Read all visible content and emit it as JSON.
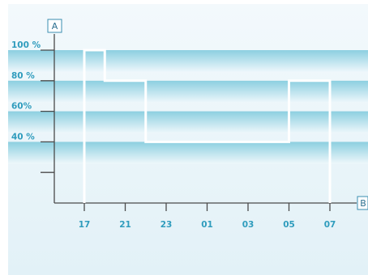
{
  "chart_data": {
    "type": "line",
    "step": true,
    "y_axis_label": "A",
    "x_axis_label": "B",
    "y_ticks": [
      {
        "value": 100,
        "label": "100 %"
      },
      {
        "value": 80,
        "label": "80 %"
      },
      {
        "value": 60,
        "label": "60%"
      },
      {
        "value": 40,
        "label": "40 %"
      },
      {
        "value": 20,
        "label": ""
      }
    ],
    "x_ticks": [
      "17",
      "21",
      "23",
      "01",
      "03",
      "05",
      "07"
    ],
    "ylim": [
      0,
      100
    ],
    "series": [
      {
        "values": [
          {
            "x": 0.0,
            "y": 0
          },
          {
            "x": 0.0,
            "y": 100
          },
          {
            "x": 0.5,
            "y": 100
          },
          {
            "x": 0.5,
            "y": 80
          },
          {
            "x": 1.5,
            "y": 80
          },
          {
            "x": 1.5,
            "y": 40
          },
          {
            "x": 5.0,
            "y": 40
          },
          {
            "x": 5.0,
            "y": 80
          },
          {
            "x": 6.0,
            "y": 80
          },
          {
            "x": 6.0,
            "y": 0
          }
        ]
      }
    ],
    "colors": {
      "line": "#ffffff",
      "axis": "#4a4a4a",
      "label": "#2f9cbd",
      "band_top": "#8ccfe0",
      "band_bottom": "#eef7fb",
      "background": "#e4f2f8"
    }
  }
}
